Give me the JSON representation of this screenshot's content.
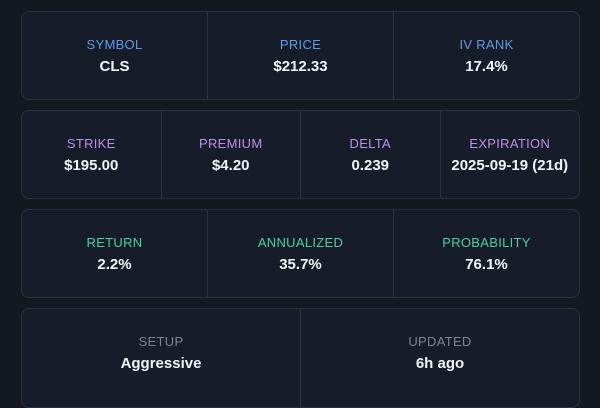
{
  "colors": {
    "blue_label": "#5f9be8",
    "purple_label": "#b990ef",
    "green_label": "#4ad1a2",
    "gray_label": "#7b8595"
  },
  "row1": [
    {
      "label": "SYMBOL",
      "value": "CLS"
    },
    {
      "label": "PRICE",
      "value": "$212.33"
    },
    {
      "label": "IV RANK",
      "value": "17.4%"
    }
  ],
  "row2": [
    {
      "label": "STRIKE",
      "value": "$195.00"
    },
    {
      "label": "PREMIUM",
      "value": "$4.20"
    },
    {
      "label": "DELTA",
      "value": "0.239"
    },
    {
      "label": "EXPIRATION",
      "value": "2025-09-19 (21d)"
    }
  ],
  "row3": [
    {
      "label": "RETURN",
      "value": "2.2%"
    },
    {
      "label": "ANNUALIZED",
      "value": "35.7%"
    },
    {
      "label": "PROBABILITY",
      "value": "76.1%"
    }
  ],
  "row4": [
    {
      "label": "SETUP",
      "value": "Aggressive"
    },
    {
      "label": "UPDATED",
      "value": "6h ago"
    }
  ]
}
